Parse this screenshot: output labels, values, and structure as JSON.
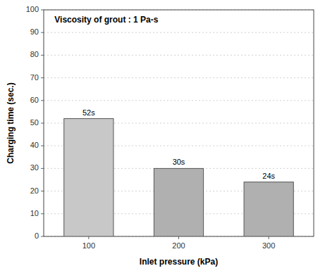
{
  "chart_data": {
    "type": "bar",
    "title": "Viscosity of grout : 1 Pa-s",
    "xlabel": "Inlet pressure (kPa)",
    "ylabel": "Charging time (sec.)",
    "categories": [
      "100",
      "200",
      "300"
    ],
    "values": [
      52,
      30,
      24
    ],
    "value_labels": [
      "52s",
      "30s",
      "24s"
    ],
    "data_labels": true,
    "colors": [
      "#c8c8c8",
      "#b0b0b0",
      "#b0b0b0"
    ],
    "ylim": [
      0,
      100
    ],
    "yticks": [
      0,
      10,
      20,
      30,
      40,
      50,
      60,
      70,
      80,
      90,
      100
    ],
    "grid": true
  }
}
